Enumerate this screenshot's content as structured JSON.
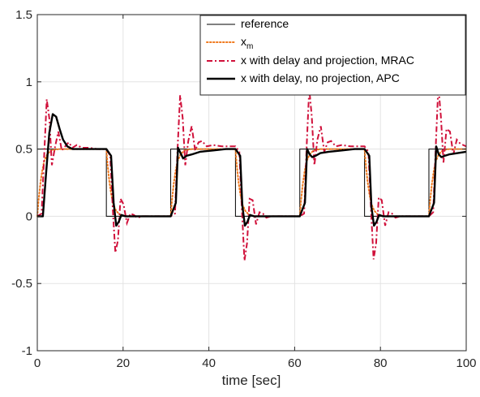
{
  "chart_data": {
    "type": "line",
    "title": "",
    "xlabel": "time [sec]",
    "ylabel": "",
    "xlim": [
      0,
      100
    ],
    "ylim": [
      -1,
      1.5
    ],
    "xticks": [
      0,
      20,
      40,
      60,
      80,
      100
    ],
    "yticks": [
      -1,
      -0.5,
      0,
      0.5,
      1,
      1.5
    ],
    "xtick_labels": [
      "0",
      "20",
      "40",
      "60",
      "80",
      "100"
    ],
    "ytick_labels": [
      "-1",
      "-0.5",
      "0",
      "0.5",
      "1",
      "1.5"
    ],
    "grid": true,
    "legend_position": "top-right",
    "legend": [
      {
        "label": "reference",
        "sub": ""
      },
      {
        "label": "x",
        "sub": "m"
      },
      {
        "label": "x with delay and projection, MRAC",
        "sub": ""
      },
      {
        "label": "x with delay, no projection, APC",
        "sub": ""
      }
    ],
    "colors": {
      "reference": "#000000",
      "xm": "#f07a1e",
      "mrac": "#d0103a",
      "apc": "#000000",
      "grid": "#e3e3e3",
      "axis": "#262626"
    },
    "series": [
      {
        "style": "solid-thin",
        "x": [
          0,
          0,
          16.1,
          16.1,
          31.1,
          31.1,
          46.2,
          46.2,
          61.2,
          61.2,
          76.3,
          76.3,
          91.3,
          91.3,
          100
        ],
        "y": [
          0,
          0.5,
          0.5,
          0,
          0,
          0.5,
          0.5,
          0,
          0,
          0.5,
          0.5,
          0,
          0,
          0.5,
          0.5
        ]
      },
      {
        "style": "dotted",
        "x": [
          0,
          0.3,
          0.7,
          1.1,
          1.6,
          2.3,
          3.2,
          5,
          16.1,
          16.4,
          16.8,
          17.2,
          17.7,
          18.4,
          19.3,
          21,
          31.1,
          31.4,
          31.8,
          32.2,
          32.7,
          33.4,
          34.3,
          36,
          46.2,
          46.5,
          46.9,
          47.3,
          47.8,
          48.5,
          49.4,
          51,
          61.2,
          61.5,
          61.9,
          62.3,
          62.8,
          63.5,
          64.4,
          66,
          76.3,
          76.6,
          77,
          77.4,
          77.9,
          78.6,
          79.5,
          81,
          91.3,
          91.6,
          92,
          92.4,
          92.9,
          93.6,
          94.5,
          96,
          100
        ],
        "y": [
          0,
          0.12,
          0.24,
          0.33,
          0.41,
          0.46,
          0.49,
          0.5,
          0.5,
          0.38,
          0.26,
          0.17,
          0.09,
          0.04,
          0.01,
          0,
          0,
          0.12,
          0.24,
          0.33,
          0.41,
          0.46,
          0.49,
          0.5,
          0.5,
          0.38,
          0.26,
          0.17,
          0.09,
          0.04,
          0.01,
          0,
          0,
          0.12,
          0.24,
          0.33,
          0.41,
          0.46,
          0.49,
          0.5,
          0.5,
          0.38,
          0.26,
          0.17,
          0.09,
          0.04,
          0.01,
          0,
          0,
          0.12,
          0.24,
          0.33,
          0.41,
          0.46,
          0.49,
          0.5,
          0.5
        ]
      },
      {
        "style": "dashdot",
        "x": [
          0,
          1,
          1.6,
          2.2,
          2.8,
          3.4,
          4.1,
          4.9,
          5.7,
          6.5,
          7.3,
          8.2,
          9.2,
          10.4,
          12,
          14,
          16.1,
          17.0,
          17.6,
          18.2,
          18.8,
          19.4,
          20.1,
          20.9,
          21.7,
          22.5,
          23.3,
          24.5,
          26,
          28,
          31.1,
          32.1,
          32.7,
          33.3,
          33.9,
          34.5,
          35.2,
          36,
          36.8,
          37.6,
          38.4,
          39.5,
          41,
          43,
          46.2,
          47.1,
          47.7,
          48.3,
          48.9,
          49.5,
          50.2,
          51,
          51.8,
          52.6,
          53.4,
          54.5,
          56,
          58,
          61.2,
          62.2,
          62.8,
          63.4,
          64.0,
          64.6,
          65.3,
          66.1,
          66.9,
          67.7,
          68.5,
          69.6,
          71,
          73,
          76.3,
          77.2,
          77.8,
          78.4,
          79.0,
          79.6,
          80.3,
          81.1,
          81.9,
          82.7,
          83.5,
          84.6,
          86,
          88,
          91.3,
          92.3,
          92.9,
          93.5,
          94.1,
          94.7,
          95.4,
          96.2,
          97.0,
          97.8,
          98.6,
          99.3,
          100
        ],
        "y": [
          0,
          0.02,
          0.45,
          0.87,
          0.73,
          0.38,
          0.51,
          0.63,
          0.49,
          0.52,
          0.55,
          0.51,
          0.53,
          0.51,
          0.51,
          0.5,
          0.5,
          0.45,
          0.05,
          -0.27,
          -0.18,
          0.13,
          0.09,
          -0.05,
          0.02,
          0.01,
          -0.01,
          0,
          0,
          0,
          0,
          0.02,
          0.5,
          0.9,
          0.73,
          0.38,
          0.56,
          0.67,
          0.49,
          0.55,
          0.56,
          0.52,
          0.53,
          0.52,
          0.52,
          0.48,
          0.05,
          -0.33,
          -0.2,
          0.13,
          0.12,
          -0.06,
          0.03,
          0.02,
          -0.01,
          0,
          0,
          0,
          0,
          0.02,
          0.52,
          0.95,
          0.74,
          0.38,
          0.57,
          0.67,
          0.48,
          0.55,
          0.56,
          0.52,
          0.53,
          0.52,
          0.52,
          0.48,
          0.05,
          -0.32,
          -0.2,
          0.14,
          0.12,
          -0.07,
          0.03,
          0.02,
          -0.01,
          0,
          0,
          0,
          0,
          0.03,
          0.52,
          0.97,
          0.74,
          0.4,
          0.65,
          0.63,
          0.46,
          0.57,
          0.54,
          0.53,
          0.52
        ]
      },
      {
        "style": "solid-thick",
        "x": [
          0,
          1.3,
          2,
          2.8,
          3.6,
          4.4,
          5.2,
          6,
          7,
          8.2,
          10,
          12,
          16.1,
          17.2,
          17.8,
          18.4,
          19,
          19.6,
          20.5,
          22,
          25,
          31.1,
          32.3,
          32.8,
          33.4,
          34,
          34.8,
          36,
          38,
          41,
          44,
          46.2,
          47.3,
          47.8,
          48.4,
          49,
          49.6,
          50.5,
          52,
          55,
          61.2,
          62.4,
          62.9,
          63.5,
          64.1,
          64.9,
          66,
          68,
          71,
          74,
          76.3,
          77.4,
          77.9,
          78.5,
          79.1,
          79.7,
          80.6,
          82,
          85,
          91.3,
          92.5,
          93,
          93.6,
          94.2,
          95,
          96,
          98,
          100
        ],
        "y": [
          0,
          0,
          0.3,
          0.62,
          0.76,
          0.74,
          0.65,
          0.57,
          0.52,
          0.5,
          0.5,
          0.5,
          0.5,
          0.45,
          0.1,
          -0.07,
          -0.04,
          0.01,
          0,
          0,
          0,
          0,
          0.1,
          0.51,
          0.47,
          0.43,
          0.45,
          0.46,
          0.48,
          0.49,
          0.5,
          0.5,
          0.45,
          0.08,
          -0.07,
          -0.04,
          0.01,
          0,
          0,
          0,
          0,
          0.1,
          0.5,
          0.46,
          0.44,
          0.45,
          0.47,
          0.48,
          0.49,
          0.5,
          0.5,
          0.45,
          0.07,
          -0.07,
          -0.04,
          0.01,
          0,
          0,
          0,
          0,
          0.1,
          0.52,
          0.46,
          0.44,
          0.45,
          0.46,
          0.47,
          0.48
        ]
      }
    ]
  }
}
